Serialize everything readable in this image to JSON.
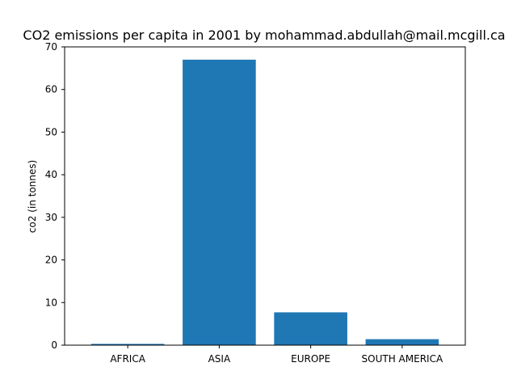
{
  "chart_data": {
    "type": "bar",
    "title": "CO2 emissions per capita in 2001 by mohammad.abdullah@mail.mcgill.ca",
    "xlabel": "",
    "ylabel": "co2 (in tonnes)",
    "categories": [
      "AFRICA",
      "ASIA",
      "EUROPE",
      "SOUTH AMERICA"
    ],
    "values": [
      0.3,
      67.0,
      7.7,
      1.4
    ],
    "ylim": [
      0,
      70
    ],
    "yticks": [
      "0",
      "10",
      "20",
      "30",
      "40",
      "50",
      "60",
      "70"
    ],
    "bar_color": "#1f77b4",
    "grid": false
  }
}
